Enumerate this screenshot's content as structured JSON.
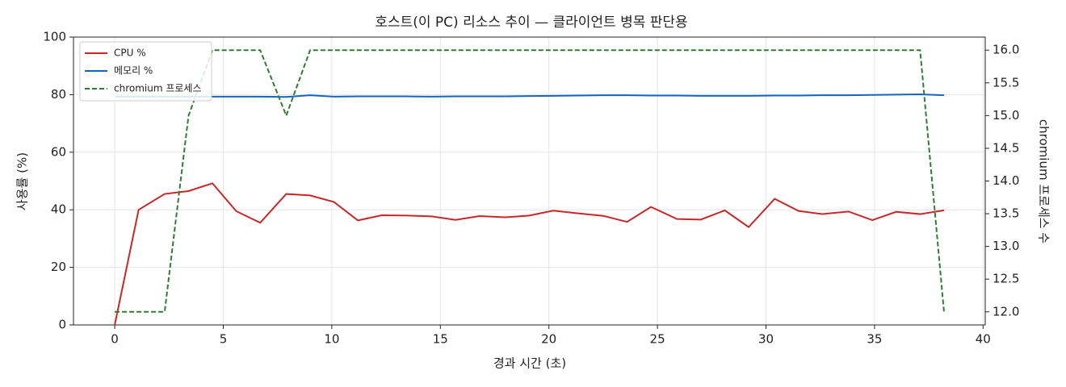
{
  "chart_data": {
    "type": "line",
    "title": "호스트(이 PC) 리소스 추이 — 클라이언트 병목 판단용",
    "x_label": "경과 시간 (초)",
    "y_label": "사용률 (%)",
    "y2_label": "chromium 프로세스 수",
    "x": [
      0,
      1.1,
      2.3,
      3.4,
      4.5,
      5.6,
      6.7,
      7.9,
      9.0,
      10.1,
      11.2,
      12.3,
      13.5,
      14.6,
      15.7,
      16.8,
      18.0,
      19.1,
      20.2,
      21.3,
      22.5,
      23.6,
      24.7,
      25.9,
      27.0,
      28.1,
      29.2,
      30.4,
      31.5,
      32.6,
      33.8,
      34.9,
      36.0,
      37.1,
      38.2
    ],
    "series": [
      {
        "name": "CPU %",
        "color": "#c62828",
        "style": "solid",
        "values": [
          0,
          40,
          45.5,
          46.5,
          49.2,
          39.5,
          35.5,
          45.5,
          45,
          42.7,
          36.3,
          38.1,
          38,
          37.7,
          36.5,
          37.8,
          37.4,
          38,
          39.7,
          38.8,
          37.9,
          35.8,
          41,
          36.8,
          36.6,
          39.8,
          34,
          43.8,
          39.6,
          38.5,
          39.4,
          36.4,
          39.3,
          38.5,
          39.8
        ]
      },
      {
        "name": "메모리 %",
        "color": "#1565c0",
        "style": "solid",
        "values": [
          79.3,
          79.3,
          79.3,
          79.3,
          79.3,
          79.3,
          79.3,
          79.2,
          79.8,
          79.3,
          79.4,
          79.4,
          79.4,
          79.3,
          79.4,
          79.4,
          79.4,
          79.5,
          79.6,
          79.7,
          79.8,
          79.8,
          79.7,
          79.7,
          79.6,
          79.6,
          79.6,
          79.7,
          79.7,
          79.8,
          79.8,
          79.9,
          80.0,
          80.1,
          79.8
        ]
      },
      {
        "name": "chromium 프로세스",
        "color": "#2e7d32",
        "style": "dashed",
        "axis": "y2",
        "values": [
          12,
          12,
          12,
          15,
          16,
          16,
          16,
          15,
          16,
          16,
          16,
          16,
          16,
          16,
          16,
          16,
          16,
          16,
          16,
          16,
          16,
          16,
          16,
          16,
          16,
          16,
          16,
          16,
          16,
          16,
          16,
          16,
          16,
          16,
          12
        ]
      }
    ],
    "xlim": [
      -1.9,
      40.1
    ],
    "xticks": [
      0,
      5,
      10,
      15,
      20,
      25,
      30,
      35,
      40
    ],
    "ylim": [
      0,
      100
    ],
    "yticks": [
      0,
      20,
      40,
      60,
      80,
      100
    ],
    "y2lim": [
      11.8,
      16.2
    ],
    "y2ticks": [
      {
        "value": 12,
        "label": "12.0"
      },
      12.5,
      {
        "value": 13,
        "label": "13.0"
      },
      13.5,
      {
        "value": 14,
        "label": "14.0"
      },
      14.5,
      {
        "value": 15,
        "label": "15.0"
      },
      15.5,
      {
        "value": 16,
        "label": "16.0"
      }
    ],
    "grid": true,
    "legend": "upper-left"
  }
}
